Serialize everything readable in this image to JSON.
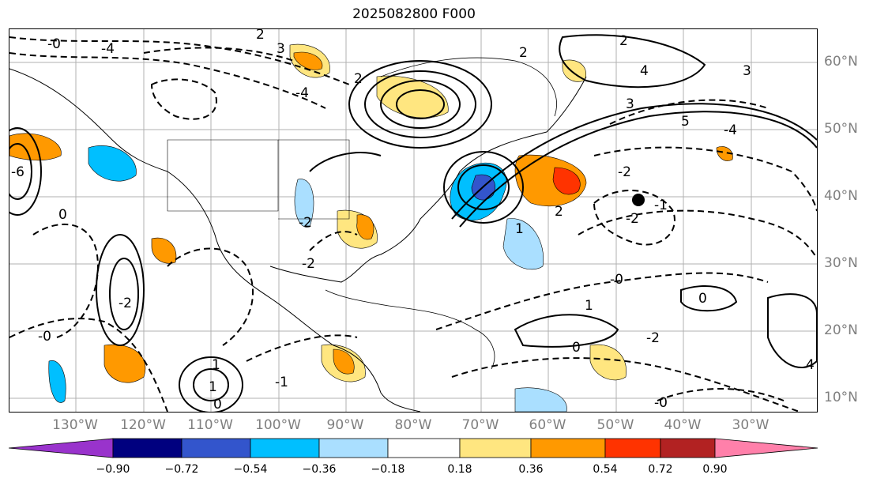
{
  "title": "2025082800 F000",
  "map": {
    "longitude_labels": [
      "130°W",
      "120°W",
      "110°W",
      "100°W",
      "90°W",
      "80°W",
      "70°W",
      "60°W",
      "50°W",
      "40°W",
      "30°W"
    ],
    "latitude_labels": [
      "60°N",
      "50°N",
      "40°N",
      "30°N",
      "20°N",
      "10°N"
    ],
    "contour_labels": [
      "-0",
      "2",
      "3",
      "3",
      "-4",
      "-4",
      "2",
      "2",
      "2",
      "4",
      "3",
      "5",
      "-4",
      "-2",
      "-2",
      "-1",
      "-2",
      "2",
      "1",
      "-2",
      "-0",
      "0",
      "-0",
      "1",
      "-2",
      "1",
      "1",
      "-1",
      "0",
      "-2",
      "-0",
      "0",
      "0",
      "-6",
      "4"
    ],
    "marker": "storm-center-dot",
    "colors": {
      "land_lines": "#000000",
      "positive_anomaly": "#ff9900",
      "negative_anomaly": "#00bfff"
    }
  },
  "colorbar": {
    "tick_labels": [
      "−0.90",
      "−0.72",
      "−0.54",
      "−0.36",
      "−0.18",
      "0.18",
      "0.36",
      "0.54",
      "0.72",
      "0.90"
    ],
    "bins": [
      {
        "color": "#9933cc"
      },
      {
        "color": "#00007f"
      },
      {
        "color": "#3355cc"
      },
      {
        "color": "#00bfff"
      },
      {
        "color": "#aadfff"
      },
      {
        "color": "#ffffff"
      },
      {
        "color": "#ffe680"
      },
      {
        "color": "#ff9900"
      },
      {
        "color": "#ff3300"
      },
      {
        "color": "#b22222"
      },
      {
        "color": "#ff80aa"
      }
    ]
  }
}
